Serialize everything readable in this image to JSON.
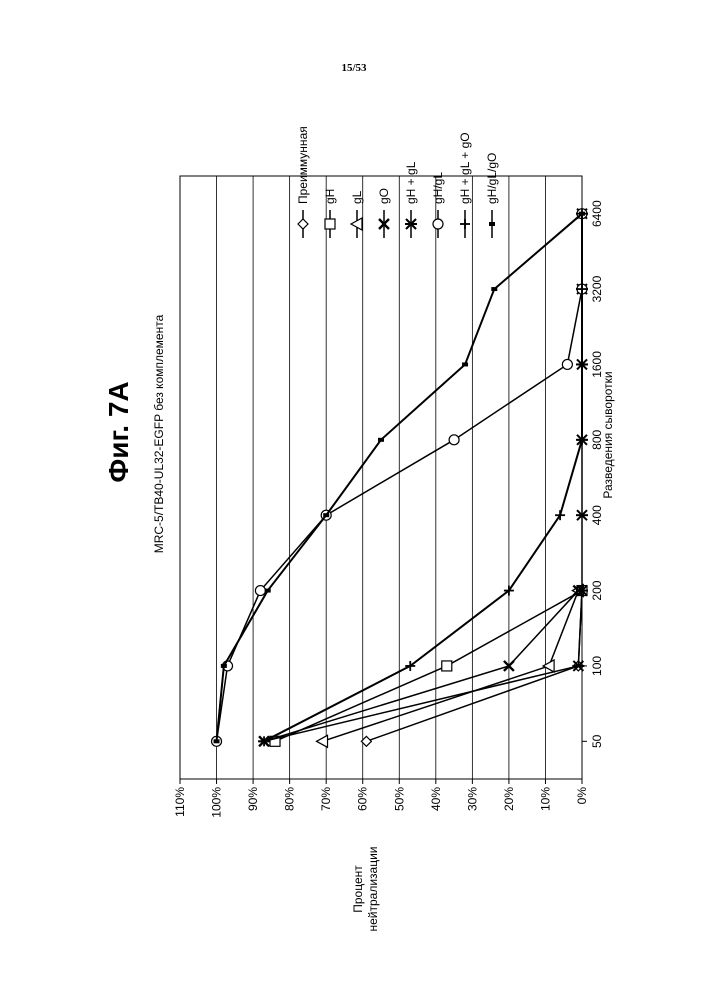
{
  "page": {
    "number": "15/53"
  },
  "figure": {
    "label": "Фиг. 7А"
  },
  "chart_data": {
    "type": "line",
    "title": "MRC-5/TB40-UL32-EGFP без комплемента",
    "xlabel": "Разведения сыворотки",
    "ylabel": "Процент нейтрализации",
    "categories": [
      "50",
      "100",
      "200",
      "400",
      "800",
      "1600",
      "3200",
      "6400"
    ],
    "ylim": [
      0,
      110
    ],
    "yticks": [
      "0%",
      "10%",
      "20%",
      "30%",
      "40%",
      "50%",
      "60%",
      "70%",
      "80%",
      "90%",
      "100%",
      "110%"
    ],
    "grid": "horizontal",
    "legend": "right",
    "series": [
      {
        "name": "Преиммунная",
        "marker": "diamond",
        "values": [
          59,
          1,
          0,
          null,
          null,
          null,
          null,
          null
        ]
      },
      {
        "name": "gH",
        "marker": "square",
        "values": [
          84,
          37,
          0,
          null,
          null,
          null,
          null,
          null
        ]
      },
      {
        "name": "gL",
        "marker": "triangle",
        "values": [
          71,
          9,
          1,
          null,
          null,
          null,
          null,
          null
        ]
      },
      {
        "name": "gO",
        "marker": "x",
        "values": [
          87,
          20,
          1,
          null,
          null,
          null,
          null,
          null
        ]
      },
      {
        "name": "gH + gL",
        "marker": "asterisk",
        "values": [
          87,
          1,
          0,
          0,
          0,
          0,
          0,
          0
        ]
      },
      {
        "name": "gH/gL",
        "marker": "circle",
        "values": [
          100,
          97,
          88,
          70,
          35,
          4,
          0,
          0
        ]
      },
      {
        "name": "gH + gL + gO",
        "marker": "plus",
        "values": [
          87,
          47,
          20,
          6,
          0,
          0,
          0,
          0
        ]
      },
      {
        "name": "gH/gL/gO",
        "marker": "dot",
        "values": [
          100,
          98,
          86,
          70,
          55,
          32,
          24,
          0
        ]
      }
    ]
  }
}
